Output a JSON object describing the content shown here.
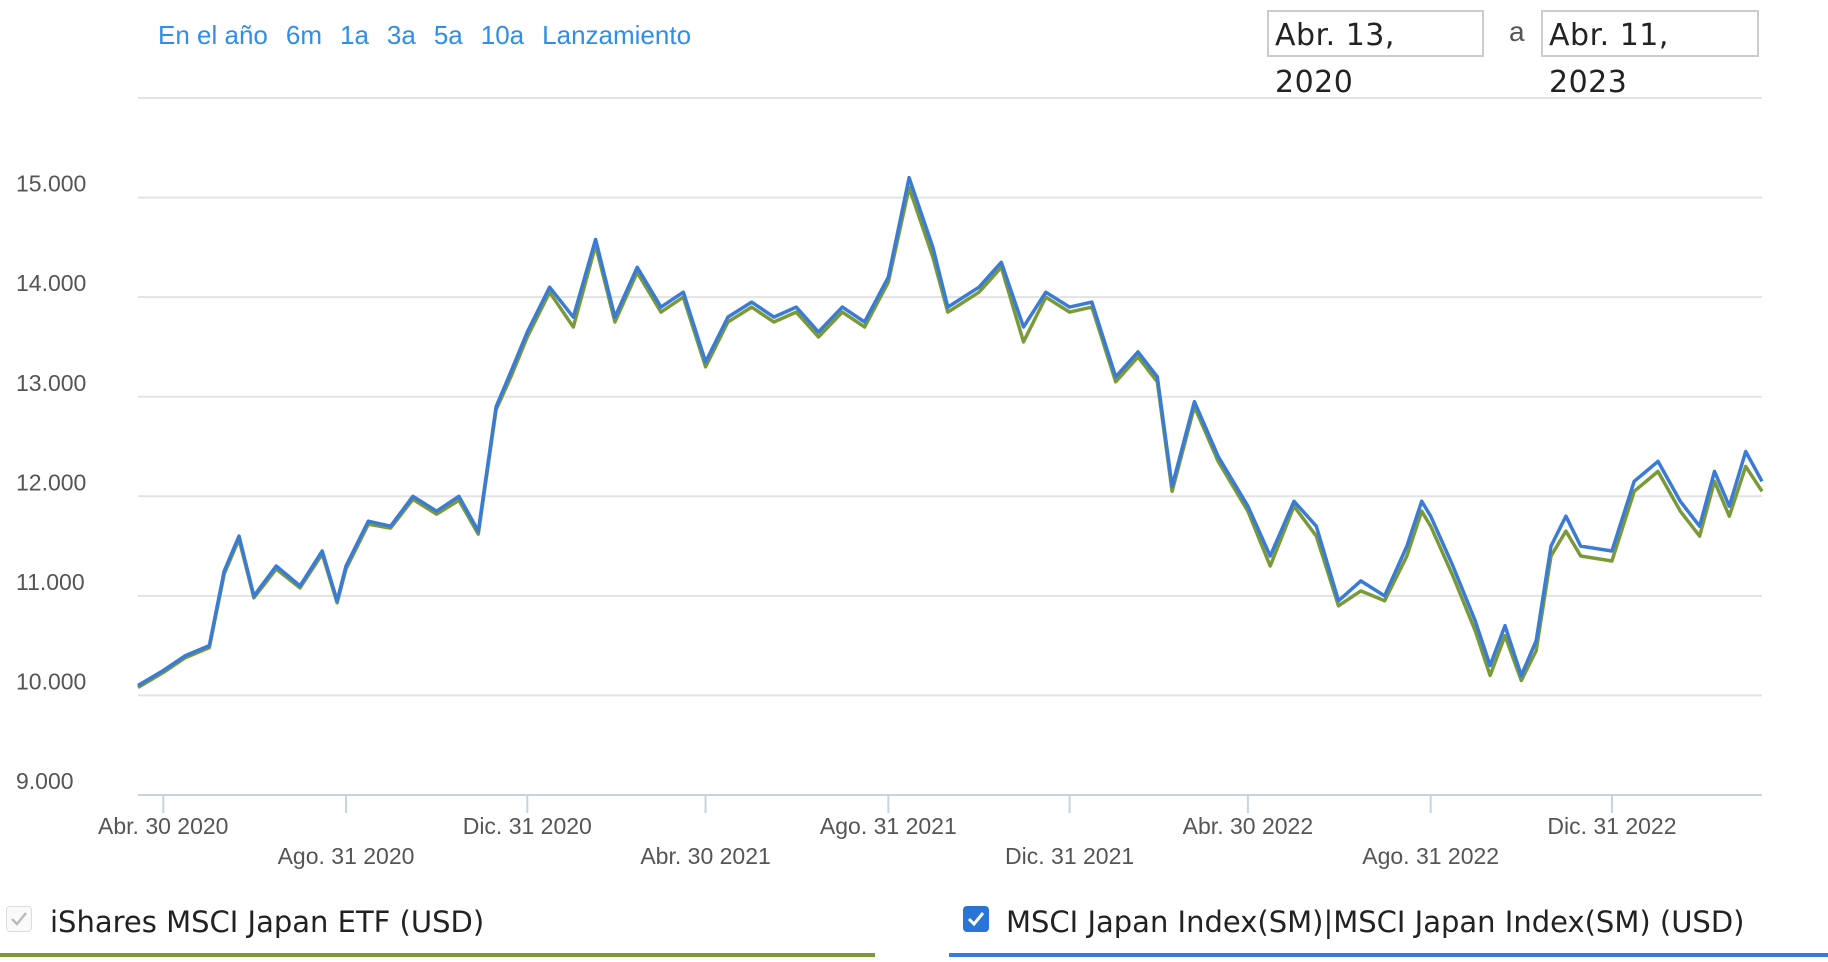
{
  "range_buttons": [
    "En el año",
    "6m",
    "1a",
    "3a",
    "5a",
    "10a",
    "Lanzamiento"
  ],
  "date_range": {
    "from": "Abr. 13, 2020",
    "separator": "a",
    "to": "Abr. 11, 2023"
  },
  "chart_data": {
    "type": "line",
    "x": [
      "2020-04-13",
      "2020-04-30",
      "2020-05-15",
      "2020-05-31",
      "2020-06-10",
      "2020-06-20",
      "2020-06-30",
      "2020-07-15",
      "2020-07-31",
      "2020-08-15",
      "2020-08-25",
      "2020-08-31",
      "2020-09-15",
      "2020-09-30",
      "2020-10-15",
      "2020-10-31",
      "2020-11-15",
      "2020-11-28",
      "2020-12-10",
      "2020-12-20",
      "2020-12-31",
      "2021-01-15",
      "2021-01-31",
      "2021-02-15",
      "2021-02-28",
      "2021-03-15",
      "2021-03-31",
      "2021-04-15",
      "2021-04-30",
      "2021-05-15",
      "2021-05-31",
      "2021-06-15",
      "2021-06-30",
      "2021-07-15",
      "2021-07-31",
      "2021-08-15",
      "2021-08-31",
      "2021-09-14",
      "2021-09-30",
      "2021-10-10",
      "2021-10-31",
      "2021-11-15",
      "2021-11-30",
      "2021-12-15",
      "2021-12-31",
      "2022-01-15",
      "2022-01-31",
      "2022-02-15",
      "2022-02-28",
      "2022-03-10",
      "2022-03-25",
      "2022-04-10",
      "2022-04-30",
      "2022-05-15",
      "2022-05-31",
      "2022-06-15",
      "2022-06-30",
      "2022-07-15",
      "2022-07-31",
      "2022-08-15",
      "2022-08-25",
      "2022-08-31",
      "2022-09-15",
      "2022-09-30",
      "2022-10-10",
      "2022-10-20",
      "2022-10-31",
      "2022-11-10",
      "2022-11-20",
      "2022-11-30",
      "2022-12-10",
      "2022-12-31",
      "2023-01-15",
      "2023-01-31",
      "2023-02-15",
      "2023-02-28",
      "2023-03-10",
      "2023-03-20",
      "2023-03-31",
      "2023-04-11"
    ],
    "series": [
      {
        "name": "iShares MSCI Japan ETF (USD)",
        "color": "#7a9a3a",
        "values": [
          10080,
          10230,
          10380,
          10480,
          11220,
          11570,
          10980,
          11270,
          11080,
          11420,
          10930,
          11270,
          11720,
          11680,
          11970,
          11820,
          11960,
          11620,
          12870,
          13200,
          13600,
          14050,
          13700,
          14520,
          13750,
          14250,
          13850,
          14000,
          13300,
          13750,
          13900,
          13750,
          13850,
          13600,
          13850,
          13700,
          14150,
          15100,
          14400,
          13850,
          14050,
          14300,
          13550,
          14000,
          13850,
          13900,
          13150,
          13400,
          13150,
          12050,
          12900,
          12350,
          11850,
          11300,
          11900,
          11600,
          10900,
          11050,
          10950,
          11400,
          11850,
          11700,
          11200,
          10650,
          10200,
          10600,
          10150,
          10450,
          11400,
          11650,
          11400,
          11350,
          12050,
          12250,
          11850,
          11600,
          12150,
          11800,
          12300,
          12050
        ]
      },
      {
        "name": "MSCI Japan Index(SM)|MSCI Japan Index(SM) (USD)",
        "color": "#3a7bd5",
        "values": [
          10100,
          10250,
          10400,
          10500,
          11250,
          11600,
          11000,
          11300,
          11100,
          11450,
          10950,
          11300,
          11750,
          11700,
          12000,
          11850,
          12000,
          11650,
          12900,
          13250,
          13650,
          14100,
          13800,
          14580,
          13800,
          14300,
          13900,
          14050,
          13350,
          13800,
          13950,
          13800,
          13900,
          13650,
          13900,
          13750,
          14200,
          15200,
          14500,
          13900,
          14100,
          14350,
          13700,
          14050,
          13900,
          13950,
          13200,
          13450,
          13200,
          12100,
          12950,
          12400,
          11900,
          11400,
          11950,
          11700,
          10950,
          11150,
          11000,
          11500,
          11950,
          11800,
          11300,
          10750,
          10300,
          10700,
          10200,
          10550,
          11500,
          11800,
          11500,
          11450,
          12150,
          12350,
          11950,
          11700,
          12250,
          11900,
          12450,
          12150
        ]
      }
    ],
    "xlim": [
      "2020-04-13",
      "2023-04-11"
    ],
    "xticks": [
      {
        "value": "2020-04-30",
        "label": "Abr. 30 2020"
      },
      {
        "value": "2020-08-31",
        "label": "Ago. 31 2020"
      },
      {
        "value": "2020-12-31",
        "label": "Dic. 31 2020"
      },
      {
        "value": "2021-04-30",
        "label": "Abr. 30 2021"
      },
      {
        "value": "2021-08-31",
        "label": "Ago. 31 2021"
      },
      {
        "value": "2021-12-31",
        "label": "Dic. 31 2021"
      },
      {
        "value": "2022-04-30",
        "label": "Abr. 30 2022"
      },
      {
        "value": "2022-08-31",
        "label": "Ago. 31 2022"
      },
      {
        "value": "2022-12-31",
        "label": "Dic. 31 2022"
      }
    ],
    "ylim": [
      9000,
      16000
    ],
    "yticks": [
      {
        "value": 9000,
        "label": "9.000"
      },
      {
        "value": 10000,
        "label": "10.000"
      },
      {
        "value": 11000,
        "label": "11.000"
      },
      {
        "value": 12000,
        "label": "12.000"
      },
      {
        "value": 13000,
        "label": "13.000"
      },
      {
        "value": 14000,
        "label": "14.000"
      },
      {
        "value": 15000,
        "label": "15.000"
      }
    ],
    "grid": true
  }
}
